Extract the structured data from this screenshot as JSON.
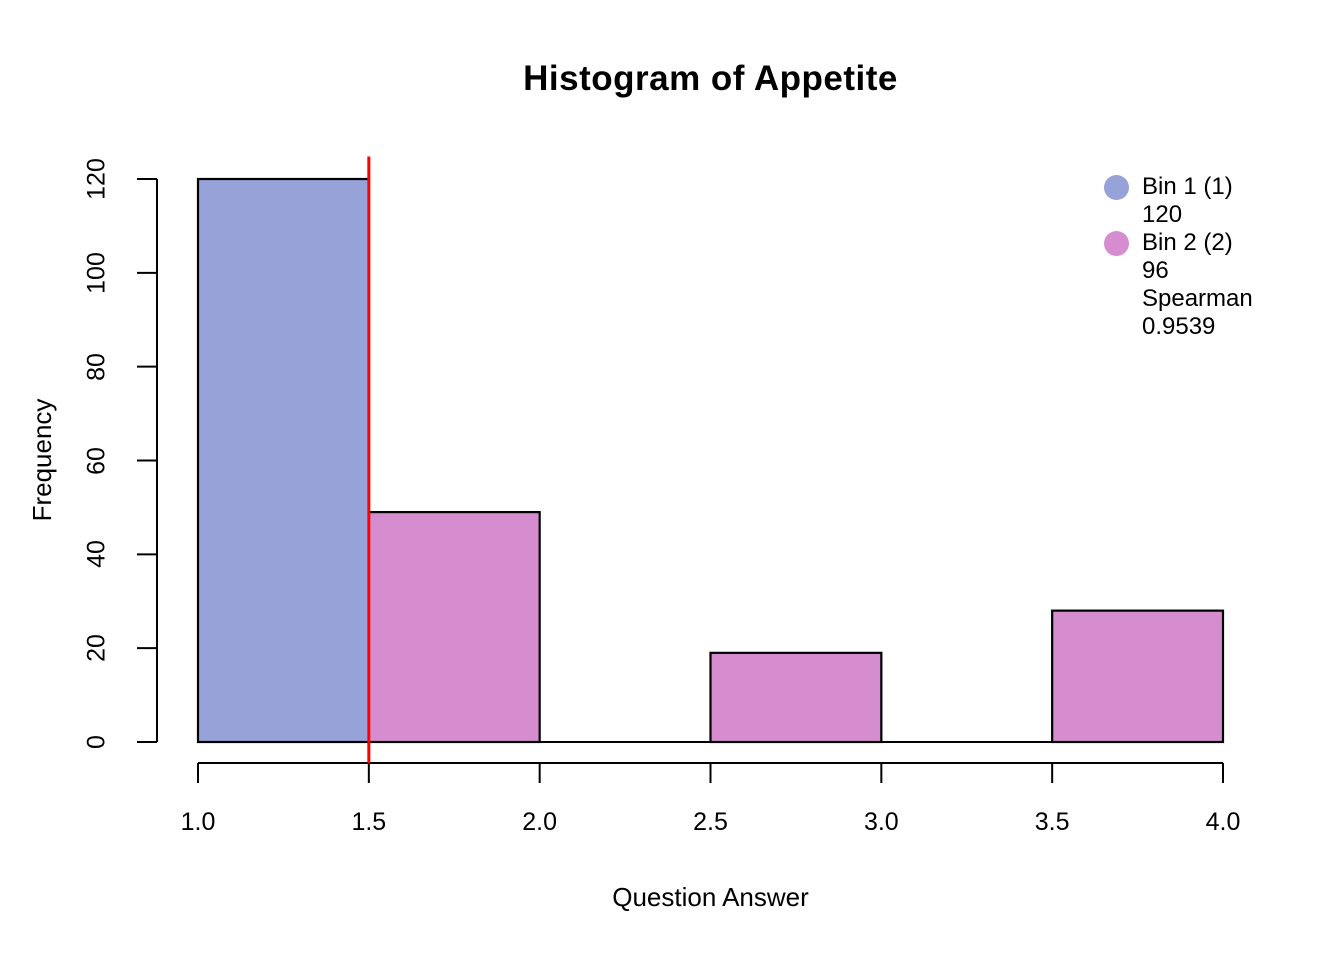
{
  "chart_data": {
    "type": "bar",
    "subtype": "histogram",
    "title": "Histogram of Appetite",
    "xlabel": "Question Answer",
    "ylabel": "Frequency",
    "xlim": [
      1.0,
      4.0
    ],
    "ylim": [
      0,
      120
    ],
    "grid": false,
    "bar_border_color": "#000000",
    "axis_color": "#000000",
    "x_ticks": [
      {
        "v": 1.0,
        "label": "1.0"
      },
      {
        "v": 1.5,
        "label": "1.5"
      },
      {
        "v": 2.0,
        "label": "2.0"
      },
      {
        "v": 2.5,
        "label": "2.5"
      },
      {
        "v": 3.0,
        "label": "3.0"
      },
      {
        "v": 3.5,
        "label": "3.5"
      },
      {
        "v": 4.0,
        "label": "4.0"
      }
    ],
    "y_ticks": [
      {
        "v": 0,
        "label": "0"
      },
      {
        "v": 20,
        "label": "20"
      },
      {
        "v": 40,
        "label": "40"
      },
      {
        "v": 60,
        "label": "60"
      },
      {
        "v": 80,
        "label": "80"
      },
      {
        "v": 100,
        "label": "100"
      },
      {
        "v": 120,
        "label": "120"
      }
    ],
    "bins": [
      {
        "start": 1.0,
        "end": 1.5,
        "count": 120,
        "color": "#96A2D8"
      },
      {
        "start": 1.5,
        "end": 2.0,
        "count": 49,
        "color": "#D58DCF"
      },
      {
        "start": 2.0,
        "end": 2.5,
        "count": 0,
        "color": "#D58DCF"
      },
      {
        "start": 2.5,
        "end": 3.0,
        "count": 19,
        "color": "#D58DCF"
      },
      {
        "start": 3.0,
        "end": 3.5,
        "count": 0,
        "color": "#D58DCF"
      },
      {
        "start": 3.5,
        "end": 4.0,
        "count": 28,
        "color": "#D58DCF"
      }
    ],
    "vline": {
      "x": 1.5,
      "color": "#FF0000"
    },
    "legend_position": "top-right"
  },
  "legend": {
    "items": [
      {
        "label": "Bin 1 (1)",
        "value": "120",
        "color": "#96A2D8"
      },
      {
        "label": "Bin 2 (2)",
        "value": "96",
        "extra1": "Spearman",
        "extra2": "0.9539",
        "color": "#D58DCF"
      }
    ]
  }
}
